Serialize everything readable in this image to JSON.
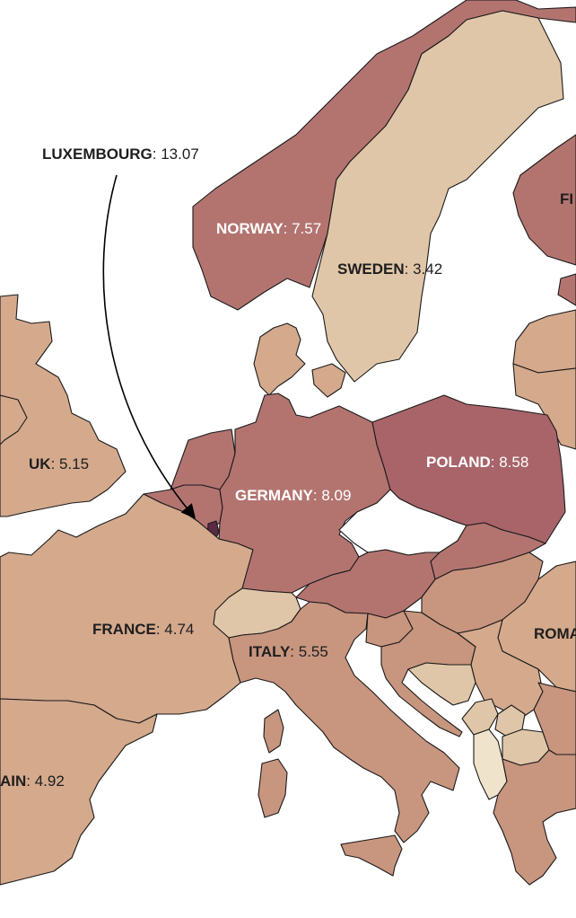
{
  "palette": {
    "very_high": "#5b2a45",
    "high": "#a86469",
    "mid_high": "#b37470",
    "mid": "#c8957f",
    "mid_low": "#d4a98c",
    "low": "#e0c6a8",
    "very_low": "#efe3cc"
  },
  "labels": {
    "luxembourg": {
      "name": "LUXEMBOURG",
      "value": ": 13.07"
    },
    "norway": {
      "name": "NORWAY",
      "value": ": 7.57"
    },
    "sweden": {
      "name": "SWEDEN",
      "value": ": 3.42"
    },
    "finland": {
      "name": "FI",
      "value": ""
    },
    "uk": {
      "name": "UK",
      "value": ": 5.15"
    },
    "germany": {
      "name": "GERMANY",
      "value": ": 8.09"
    },
    "poland": {
      "name": "POLAND",
      "value": ": 8.58"
    },
    "france": {
      "name": "FRANCE",
      "value": ": 4.74"
    },
    "italy": {
      "name": "ITALY",
      "value": ": 5.55"
    },
    "romania": {
      "name": "ROMA",
      "value": ""
    },
    "spain": {
      "name": "AIN",
      "value": ": 4.92"
    }
  },
  "values": {
    "luxembourg": 13.07,
    "norway": 7.57,
    "sweden": 3.42,
    "uk": 5.15,
    "germany": 8.09,
    "poland": 8.58,
    "france": 4.74,
    "italy": 5.55,
    "spain": 4.92
  }
}
